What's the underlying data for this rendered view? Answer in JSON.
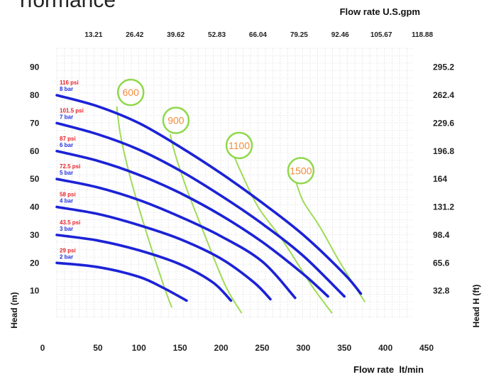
{
  "title": "rformance",
  "chart_data": {
    "type": "line",
    "x_bottom_label": "Flow rate  lt/min",
    "x_top_label": "Flow rate U.S.gpm",
    "y_left_label": "Head (m)",
    "y_right_label": "Head H (ft)",
    "x_bottom_ticks": [
      "0",
      "50",
      "100",
      "150",
      "200",
      "250",
      "300",
      "350",
      "400",
      "450"
    ],
    "x_top_ticks": [
      "13.21",
      "26.42",
      "39.62",
      "52.83",
      "66.04",
      "79.25",
      "92.46",
      "105.67",
      "118.88"
    ],
    "y_left_ticks": [
      "10",
      "20",
      "30",
      "40",
      "50",
      "60",
      "70",
      "80",
      "90"
    ],
    "y_right_ticks": [
      "32.8",
      "65.6",
      "98.4",
      "131.2",
      "164",
      "196.8",
      "229.6",
      "262.4",
      "295.2"
    ],
    "xlim": [
      0,
      450
    ],
    "ylim": [
      0,
      95
    ],
    "grid": true,
    "pressure_curves": [
      {
        "psi": "116 psi",
        "bar": "8 bar",
        "x": [
          0,
          50,
          100,
          150,
          200,
          250,
          300,
          350,
          370
        ],
        "y": [
          80,
          76,
          70,
          61.5,
          52,
          41.5,
          30,
          16,
          9
        ]
      },
      {
        "psi": "101.5 psi",
        "bar": "7 bar",
        "x": [
          0,
          50,
          100,
          150,
          200,
          250,
          300,
          350
        ],
        "y": [
          70,
          66,
          60.5,
          53,
          44,
          34,
          22.5,
          8
        ]
      },
      {
        "psi": "87 psi",
        "bar": "6 bar",
        "x": [
          0,
          50,
          100,
          150,
          200,
          250,
          300,
          330
        ],
        "y": [
          60,
          56.5,
          51.5,
          45,
          37,
          27.5,
          16,
          8
        ]
      },
      {
        "psi": "72.5 psi",
        "bar": "5 bar",
        "x": [
          0,
          50,
          100,
          150,
          200,
          250,
          290
        ],
        "y": [
          50,
          47,
          42.5,
          36.5,
          29.5,
          20.5,
          7.5
        ]
      },
      {
        "psi": "58 psi",
        "bar": "4 bar",
        "x": [
          0,
          50,
          100,
          150,
          200,
          240,
          260
        ],
        "y": [
          40,
          37.5,
          33.5,
          28.5,
          21.5,
          13,
          7
        ]
      },
      {
        "psi": "43.5 psi",
        "bar": "3 bar",
        "x": [
          0,
          50,
          100,
          150,
          190,
          212
        ],
        "y": [
          30,
          28,
          24.5,
          19.5,
          13,
          6.5
        ]
      },
      {
        "psi": "29 psi",
        "bar": "2 bar",
        "x": [
          0,
          50,
          100,
          130,
          158
        ],
        "y": [
          20,
          18.5,
          15,
          11,
          6.5
        ]
      }
    ],
    "air_curves": [
      {
        "label": "600",
        "x": [
          73,
          78,
          90,
          110,
          130,
          140
        ],
        "y": [
          76,
          65,
          50,
          30,
          12,
          4
        ]
      },
      {
        "label": "900",
        "x": [
          138,
          145,
          160,
          180,
          205,
          225
        ],
        "y": [
          66,
          58,
          45,
          30,
          12,
          2
        ]
      },
      {
        "label": "1100",
        "x": [
          216,
          225,
          245,
          275,
          310,
          335
        ],
        "y": [
          58,
          52,
          40,
          28,
          12,
          2
        ]
      },
      {
        "label": "1500",
        "x": [
          290,
          300,
          320,
          345,
          375
        ],
        "y": [
          50,
          42,
          33,
          20,
          6
        ]
      }
    ],
    "air_labels": [
      {
        "label": "600",
        "x": 90,
        "y": 81
      },
      {
        "label": "900",
        "x": 145,
        "y": 71
      },
      {
        "label": "1100",
        "x": 222,
        "y": 62
      },
      {
        "label": "1500",
        "x": 297,
        "y": 53
      }
    ]
  }
}
